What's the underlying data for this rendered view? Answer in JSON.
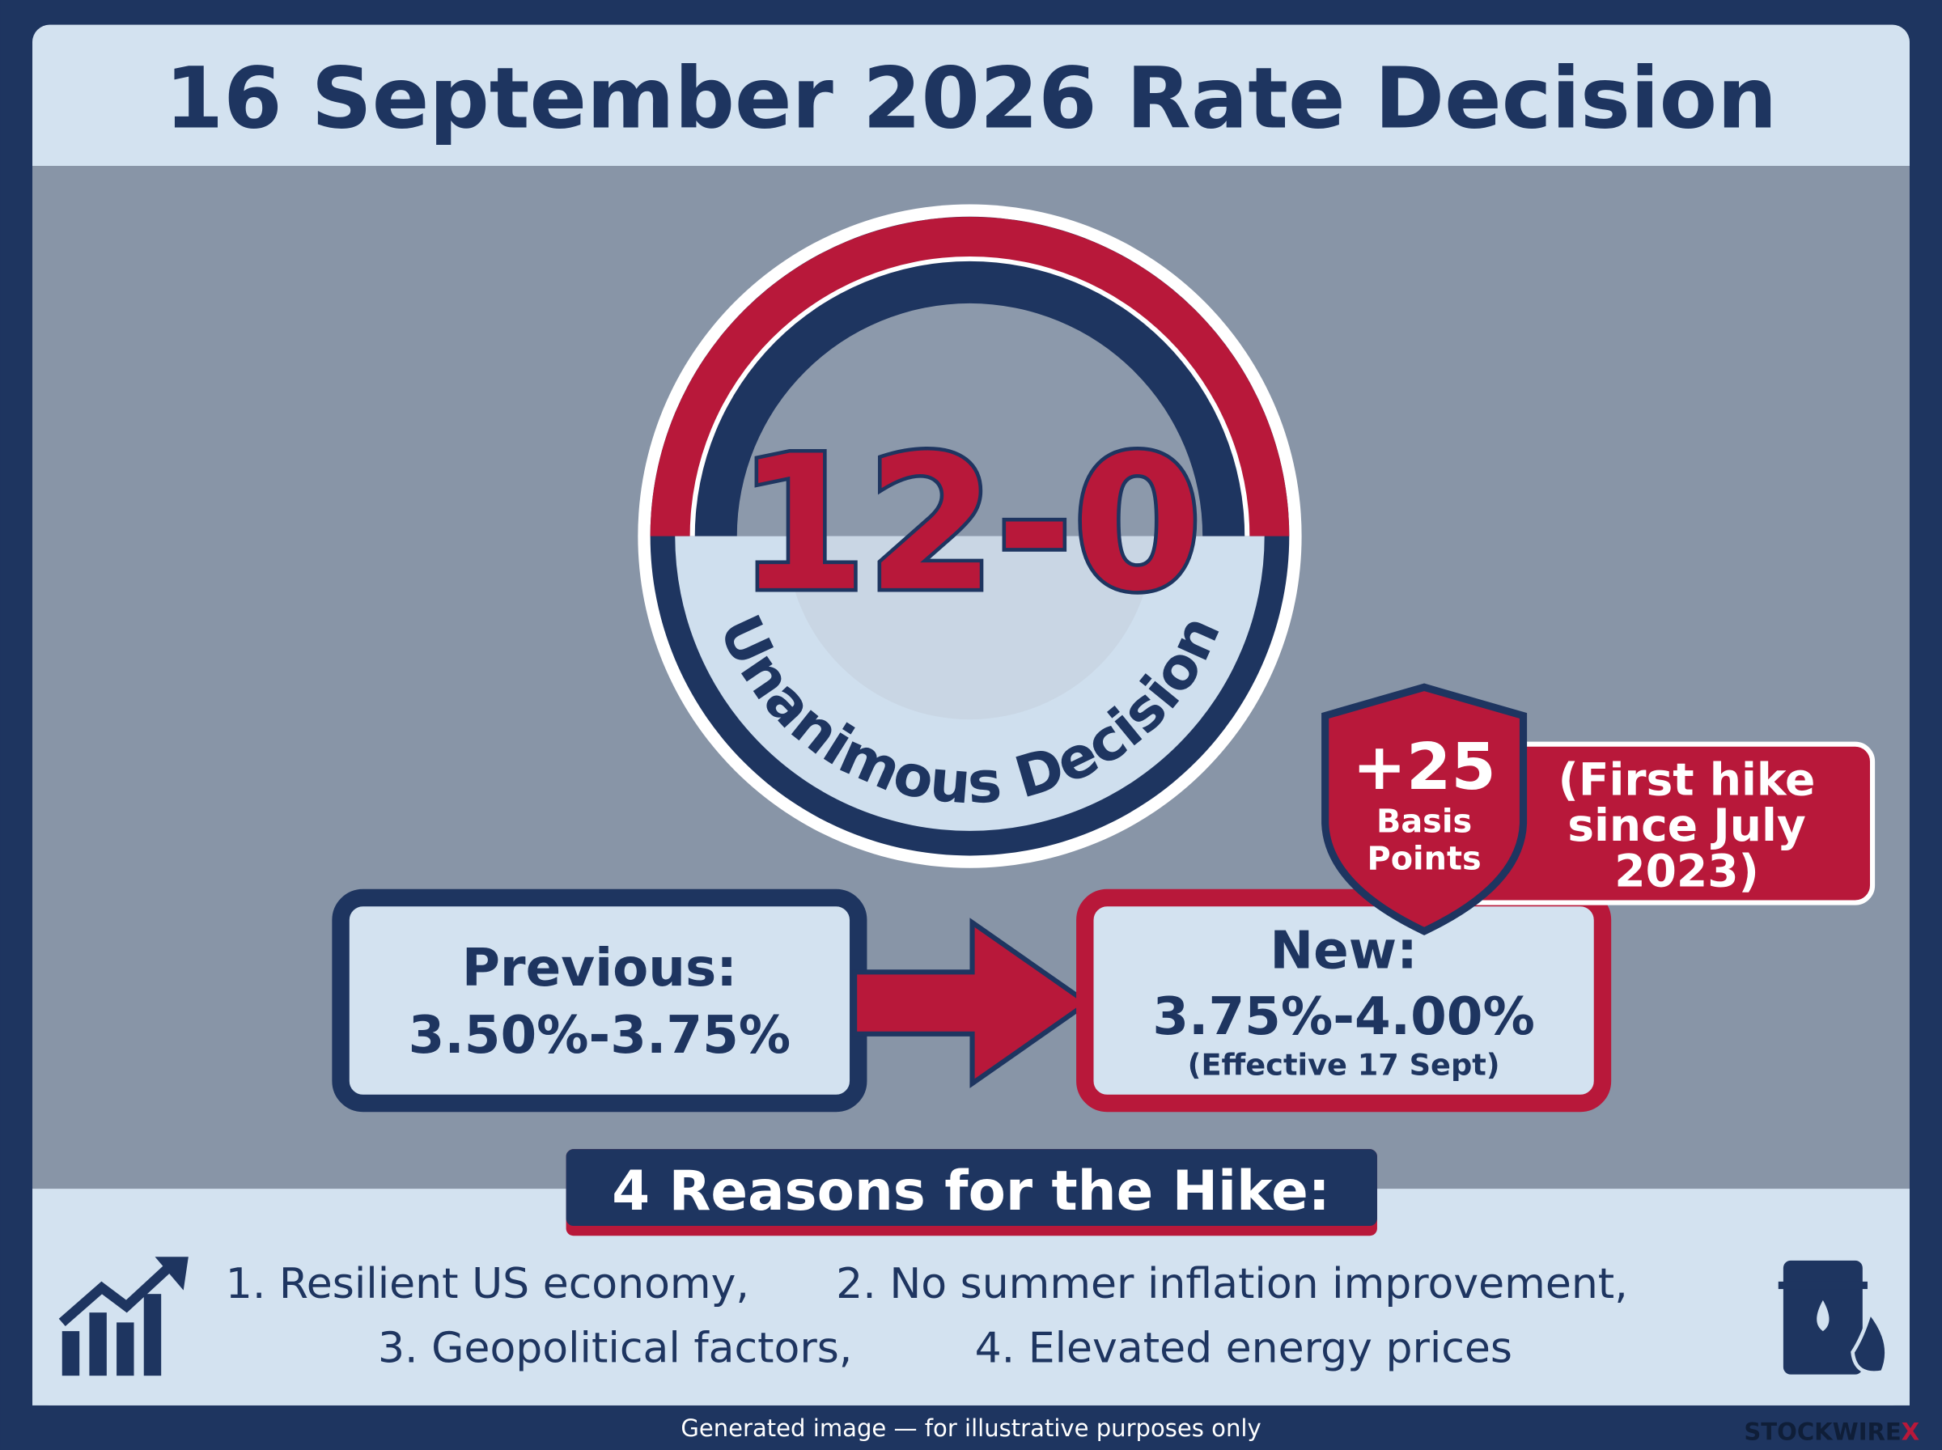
{
  "header": {
    "title": "16 September 2026 Rate Decision"
  },
  "badge": {
    "score": "12-0",
    "label": "Unanimous Decision"
  },
  "shield": {
    "value": "+25",
    "label_lines": [
      "Basis",
      "Points"
    ]
  },
  "note": {
    "lines": [
      "(First hike",
      "since July",
      "2023)"
    ]
  },
  "previous": {
    "label": "Previous:",
    "range": "3.50%-3.75%"
  },
  "new": {
    "label": "New:",
    "range": "3.75%-4.00%",
    "effective": "(Effective 17 Sept)"
  },
  "reasons": {
    "heading": "4 Reasons for the Hike:",
    "items": [
      "1. Resilient US economy,",
      "2. No summer inflation improvement,",
      "3. Geopolitical factors,",
      "4. Elevated energy prices"
    ]
  },
  "footer": {
    "disclaimer": "Generated image — for illustrative purposes only",
    "brand": "STOCKWIRE",
    "brand_mark": "X"
  }
}
